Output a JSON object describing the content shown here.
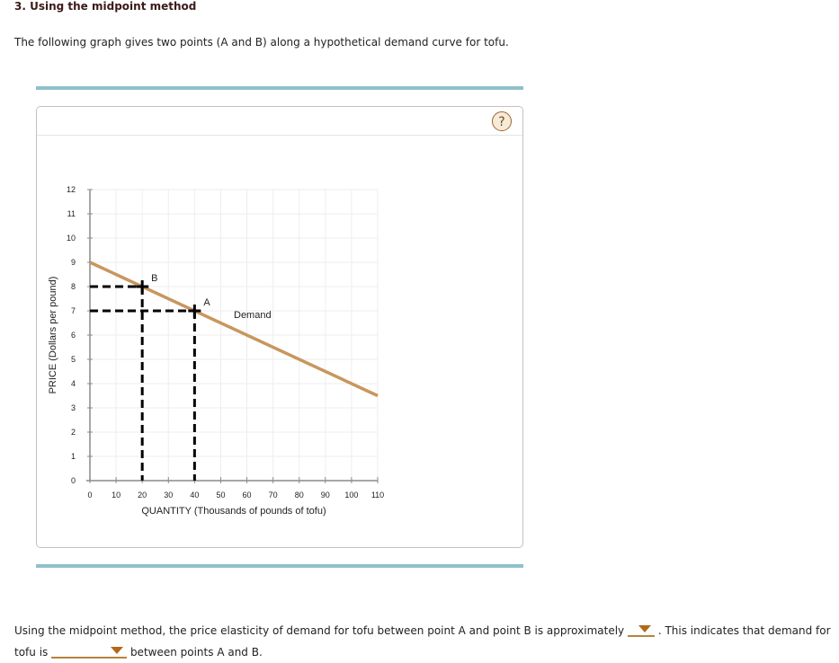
{
  "header": {
    "title": "3. Using the midpoint method",
    "intro": "The following graph gives two points (A and B) along a hypothetical demand curve for tofu."
  },
  "panel": {
    "help_icon": "?"
  },
  "chart_data": {
    "type": "line",
    "title": "",
    "xlabel": "QUANTITY (Thousands of pounds of tofu)",
    "ylabel": "PRICE (Dollars per pound)",
    "xlim": [
      0,
      110
    ],
    "ylim": [
      0,
      12
    ],
    "x_ticks": [
      0,
      10,
      20,
      30,
      40,
      50,
      60,
      70,
      80,
      90,
      100,
      110
    ],
    "y_ticks": [
      0,
      1,
      2,
      3,
      4,
      5,
      6,
      7,
      8,
      9,
      10,
      11,
      12
    ],
    "grid": true,
    "series": [
      {
        "name": "Demand",
        "color": "#c8965e",
        "x": [
          0,
          110
        ],
        "y": [
          9,
          3.5
        ]
      }
    ],
    "points": [
      {
        "label": "B",
        "x": 20,
        "y": 8
      },
      {
        "label": "A",
        "x": 40,
        "y": 7
      }
    ],
    "annotations": [
      "Demand",
      "A",
      "B"
    ],
    "dashed_guides": true
  },
  "question": {
    "line1_before": "Using the midpoint method, the price elasticity of demand for tofu between point A and point B is approximately",
    "line1_after": ". This indicates that demand for",
    "line2_before": "tofu is",
    "line2_after": "between points A and B.",
    "dropdown1_value": "",
    "dropdown2_value": ""
  }
}
